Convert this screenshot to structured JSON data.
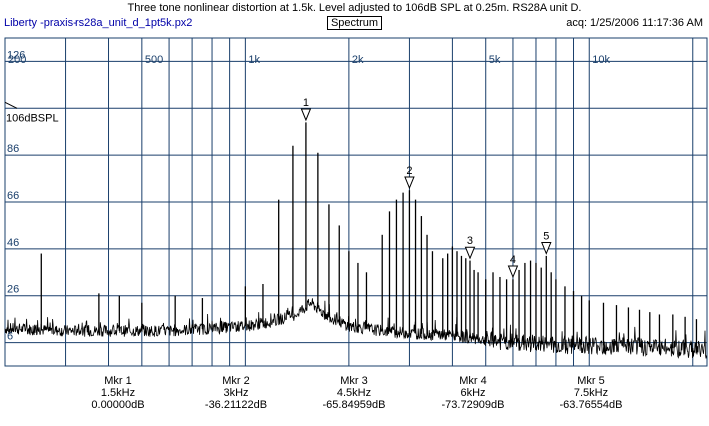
{
  "title": "Three tone nonlinear distortion at 1.5k. Level adjusted to 106dB SPL at 0.25m. RS28A unit D.",
  "header": {
    "app_name": "Liberty -praxis-",
    "file_name": "rs28a_unit_d_1pt5k.px2",
    "mode": "Spectrum",
    "acq": "acq: 1/25/2006 11:17:36 AM"
  },
  "colors": {
    "grid": "#1a3f6b",
    "trace": "#000000",
    "axis_text": "#1a3f6b",
    "marker": "#000000"
  },
  "chart_data": {
    "type": "line",
    "x_scale": "log",
    "xlim": [
      200,
      22000
    ],
    "ylim": [
      -4,
      136
    ],
    "y_reference_label": "106dBSPL",
    "y_reference_value": 106,
    "x_tick_labels": [
      {
        "label": "200",
        "value": 200
      },
      {
        "label": "500",
        "value": 500
      },
      {
        "label": "1k",
        "value": 1000
      },
      {
        "label": "2k",
        "value": 2000
      },
      {
        "label": "5k",
        "value": 5000
      },
      {
        "label": "10k",
        "value": 10000
      }
    ],
    "x_gridlines": [
      200,
      300,
      400,
      500,
      600,
      700,
      800,
      900,
      1000,
      2000,
      3000,
      4000,
      5000,
      6000,
      7000,
      8000,
      9000,
      10000,
      20000
    ],
    "y_tick_labels": [
      {
        "label": "126",
        "value": 126
      },
      {
        "label": "86",
        "value": 86
      },
      {
        "label": "66",
        "value": 66
      },
      {
        "label": "46",
        "value": 46
      },
      {
        "label": "26",
        "value": 26
      },
      {
        "label": "6",
        "value": 6
      }
    ],
    "y_gridlines": [
      126,
      106,
      86,
      66,
      46,
      26,
      6
    ],
    "noise_floor": [
      {
        "x": 200,
        "y": 12
      },
      {
        "x": 300,
        "y": 11
      },
      {
        "x": 400,
        "y": 11
      },
      {
        "x": 600,
        "y": 11
      },
      {
        "x": 800,
        "y": 12
      },
      {
        "x": 1000,
        "y": 13
      },
      {
        "x": 1200,
        "y": 15
      },
      {
        "x": 1400,
        "y": 18
      },
      {
        "x": 1550,
        "y": 23
      },
      {
        "x": 1700,
        "y": 18
      },
      {
        "x": 2000,
        "y": 13
      },
      {
        "x": 2500,
        "y": 11
      },
      {
        "x": 3000,
        "y": 10
      },
      {
        "x": 4000,
        "y": 9
      },
      {
        "x": 5000,
        "y": 7
      },
      {
        "x": 6000,
        "y": 6
      },
      {
        "x": 8000,
        "y": 5
      },
      {
        "x": 10000,
        "y": 5
      },
      {
        "x": 15000,
        "y": 4
      },
      {
        "x": 22000,
        "y": 3
      }
    ],
    "peaks": [
      {
        "x": 255,
        "y": 44
      },
      {
        "x": 375,
        "y": 27
      },
      {
        "x": 430,
        "y": 26
      },
      {
        "x": 500,
        "y": 23
      },
      {
        "x": 625,
        "y": 26
      },
      {
        "x": 750,
        "y": 25
      },
      {
        "x": 1000,
        "y": 30
      },
      {
        "x": 1125,
        "y": 31
      },
      {
        "x": 1250,
        "y": 67
      },
      {
        "x": 1375,
        "y": 90
      },
      {
        "x": 1500,
        "y": 100
      },
      {
        "x": 1625,
        "y": 87
      },
      {
        "x": 1750,
        "y": 65
      },
      {
        "x": 1875,
        "y": 56
      },
      {
        "x": 2000,
        "y": 45
      },
      {
        "x": 2125,
        "y": 40
      },
      {
        "x": 2250,
        "y": 36
      },
      {
        "x": 2500,
        "y": 52
      },
      {
        "x": 2625,
        "y": 62
      },
      {
        "x": 2750,
        "y": 67
      },
      {
        "x": 2875,
        "y": 70
      },
      {
        "x": 3000,
        "y": 71
      },
      {
        "x": 3125,
        "y": 67
      },
      {
        "x": 3250,
        "y": 60
      },
      {
        "x": 3375,
        "y": 52
      },
      {
        "x": 3500,
        "y": 45
      },
      {
        "x": 3750,
        "y": 42
      },
      {
        "x": 3875,
        "y": 44
      },
      {
        "x": 4000,
        "y": 47
      },
      {
        "x": 4125,
        "y": 45
      },
      {
        "x": 4250,
        "y": 43
      },
      {
        "x": 4375,
        "y": 42
      },
      {
        "x": 4500,
        "y": 41
      },
      {
        "x": 4625,
        "y": 37
      },
      {
        "x": 4750,
        "y": 36
      },
      {
        "x": 5000,
        "y": 33
      },
      {
        "x": 5250,
        "y": 36
      },
      {
        "x": 5500,
        "y": 34
      },
      {
        "x": 5750,
        "y": 33
      },
      {
        "x": 6000,
        "y": 33
      },
      {
        "x": 6250,
        "y": 37
      },
      {
        "x": 6500,
        "y": 40
      },
      {
        "x": 6750,
        "y": 41
      },
      {
        "x": 7000,
        "y": 40
      },
      {
        "x": 7250,
        "y": 38
      },
      {
        "x": 7500,
        "y": 43
      },
      {
        "x": 7750,
        "y": 36
      },
      {
        "x": 8000,
        "y": 33
      },
      {
        "x": 8500,
        "y": 30
      },
      {
        "x": 9000,
        "y": 28
      },
      {
        "x": 9500,
        "y": 26
      },
      {
        "x": 10000,
        "y": 24
      },
      {
        "x": 11000,
        "y": 23
      },
      {
        "x": 12000,
        "y": 22
      },
      {
        "x": 13000,
        "y": 21
      },
      {
        "x": 14000,
        "y": 20
      },
      {
        "x": 15000,
        "y": 19
      },
      {
        "x": 16000,
        "y": 18
      },
      {
        "x": 17500,
        "y": 18
      },
      {
        "x": 19000,
        "y": 17
      },
      {
        "x": 20500,
        "y": 16
      }
    ],
    "markers": [
      {
        "label": "1",
        "x": 1500,
        "y": 101
      },
      {
        "label": "2",
        "x": 3000,
        "y": 72
      },
      {
        "label": "3",
        "x": 4500,
        "y": 42
      },
      {
        "label": "4",
        "x": 6000,
        "y": 34
      },
      {
        "label": "5",
        "x": 7500,
        "y": 44
      }
    ]
  },
  "marker_readouts": [
    {
      "name": "Mkr 1",
      "freq": "1.5kHz",
      "level": "0.00000dB"
    },
    {
      "name": "Mkr 2",
      "freq": "3kHz",
      "level": "-36.21122dB"
    },
    {
      "name": "Mkr 3",
      "freq": "4.5kHz",
      "level": "-65.84959dB"
    },
    {
      "name": "Mkr 4",
      "freq": "6kHz",
      "level": "-73.72909dB"
    },
    {
      "name": "Mkr 5",
      "freq": "7.5kHz",
      "level": "-63.76554dB"
    }
  ]
}
